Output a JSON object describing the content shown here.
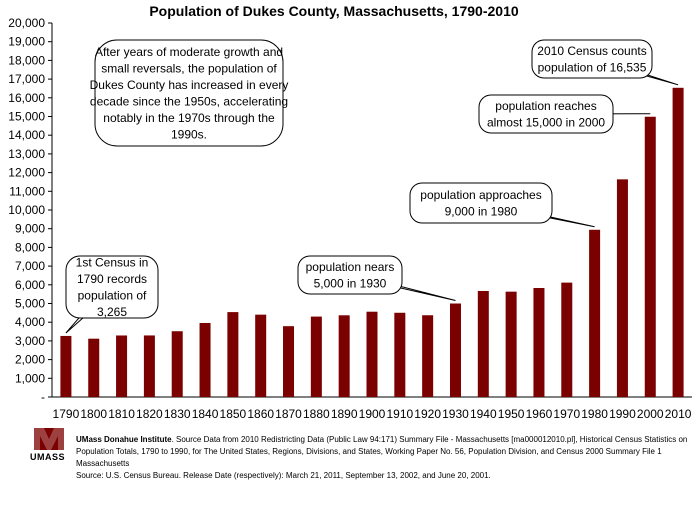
{
  "chart_data": {
    "type": "bar",
    "title": "Population of Dukes County, Massachusetts, 1790-2010",
    "categories": [
      "1790",
      "1800",
      "1810",
      "1820",
      "1830",
      "1840",
      "1850",
      "1860",
      "1870",
      "1880",
      "1890",
      "1900",
      "1910",
      "1920",
      "1930",
      "1940",
      "1950",
      "1960",
      "1970",
      "1980",
      "1990",
      "2000",
      "2010"
    ],
    "values": [
      3265,
      3118,
      3290,
      3292,
      3517,
      3958,
      4540,
      4403,
      3787,
      4300,
      4369,
      4561,
      4504,
      4372,
      5000,
      5669,
      5633,
      5829,
      6117,
      8942,
      11639,
      14987,
      16535
    ],
    "ylim": [
      0,
      20000
    ],
    "yticks": [
      "-",
      "1,000",
      "2,000",
      "3,000",
      "4,000",
      "5,000",
      "6,000",
      "7,000",
      "8,000",
      "9,000",
      "10,000",
      "11,000",
      "12,000",
      "13,000",
      "14,000",
      "15,000",
      "16,000",
      "17,000",
      "18,000",
      "19,000",
      "20,000"
    ],
    "bar_color": "#7b0000",
    "grid": false,
    "annotations": [
      {
        "lines": [
          "After years of moderate growth and",
          "small reversals, the population of",
          "Dukes County has increased in every",
          "decade since the 1950s, accelerating",
          "notably in the 1970s through the",
          "1990s."
        ]
      },
      {
        "lines": [
          "1st Census in",
          "1790 records",
          "population of",
          "3,265"
        ],
        "target": "1790"
      },
      {
        "lines": [
          "population nears",
          "5,000 in 1930"
        ],
        "target": "1930"
      },
      {
        "lines": [
          "population approaches",
          "9,000 in 1980"
        ],
        "target": "1980"
      },
      {
        "lines": [
          "population reaches",
          "almost 15,000 in 2000"
        ],
        "target": "2000"
      },
      {
        "lines": [
          "2010 Census counts",
          "population of 16,535"
        ],
        "target": "2010"
      }
    ]
  },
  "footer": {
    "institute": "UMass Donahue Institute",
    "line1": ".  Source Data from 2010 Redistricting Data (Public Law 94:171) Summary File - Massachusetts [ma000012010.pl],  Historical Census Statistics on",
    "line2": "Population Totals, 1790 to 1990, for The United States, Regions, Divisions, and States, Working Paper No. 56, Population Division, and Census 2000 Summary File 1 Massachusetts",
    "line3": "Source: U.S. Census Bureau.  Release Date (respectively): March 21, 2011, September 13, 2002, and June 20, 2001."
  },
  "logo": {
    "text": "UMASS",
    "color": "#7b0000"
  }
}
